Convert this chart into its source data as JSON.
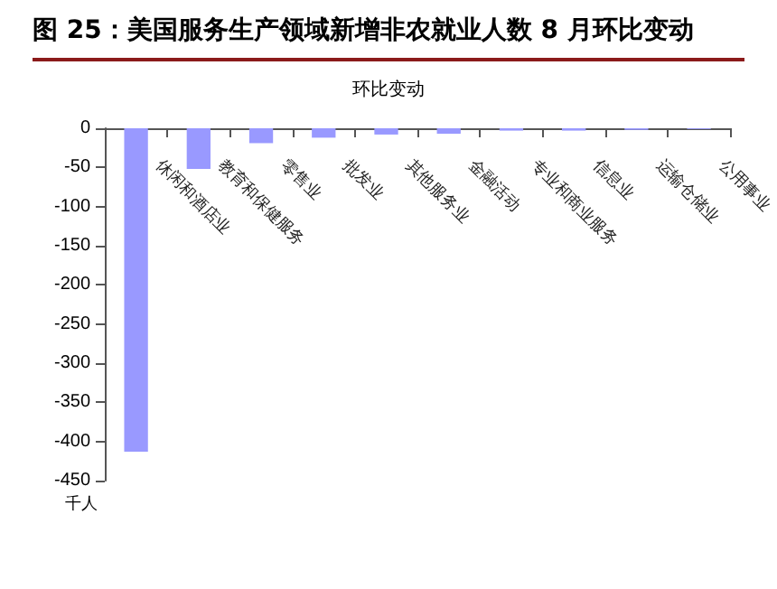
{
  "chart_data": {
    "type": "bar",
    "title": "图 25：美国服务生产领域新增非农就业人数 8 月环比变动",
    "subtitle": "环比变动",
    "ylabel": "千人",
    "categories": [
      "休闲和酒店业",
      "教育和保健服务",
      "零售业",
      "批发业",
      "其他服务业",
      "金融活动",
      "专业和商业服务",
      "信息业",
      "运输仓储业",
      "公用事业"
    ],
    "values": [
      -413,
      -52,
      -19,
      -12,
      -8,
      -7,
      -3,
      -3,
      -2,
      -1
    ],
    "color": "#9999ff",
    "ylim": [
      -450,
      0
    ],
    "yticks": [
      0,
      -50,
      -100,
      -150,
      -200,
      -250,
      -300,
      -350,
      -400,
      -450
    ],
    "grid": false
  }
}
